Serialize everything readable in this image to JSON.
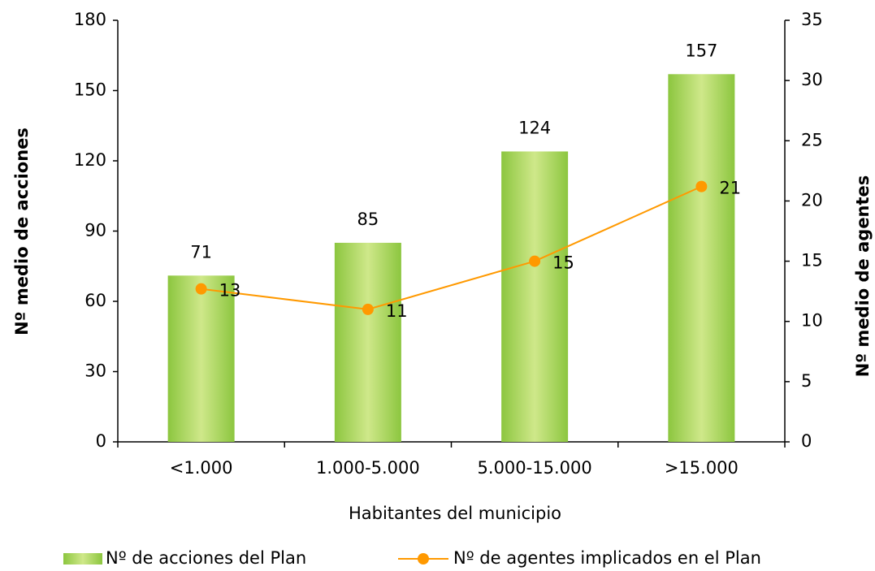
{
  "chart_data": {
    "type": "bar",
    "categories": [
      "<1.000",
      "1.000-5.000",
      "5.000-15.000",
      ">15.000"
    ],
    "xlabel": "Habitantes del municipio",
    "ylabel": "Nº medio de acciones",
    "y2label": "Nº medio de agentes",
    "ylim": [
      0,
      180
    ],
    "yticks": [
      0,
      30,
      60,
      90,
      120,
      150,
      180
    ],
    "y2lim": [
      0,
      35
    ],
    "y2ticks": [
      0,
      5,
      10,
      15,
      20,
      25,
      30,
      35
    ],
    "legend": "bottom",
    "series": [
      {
        "name": "Nº de acciones del Plan",
        "color": "#8cc63f",
        "values": [
          71,
          85,
          124,
          157
        ]
      },
      {
        "name": "Nº de agentes implicados en el Plan",
        "color": "#ff9900",
        "type": "line",
        "axis": "y2",
        "values": [
          12.7,
          11,
          15,
          21.2
        ],
        "value_labels": [
          "13",
          "11",
          "15",
          "21"
        ]
      }
    ]
  }
}
